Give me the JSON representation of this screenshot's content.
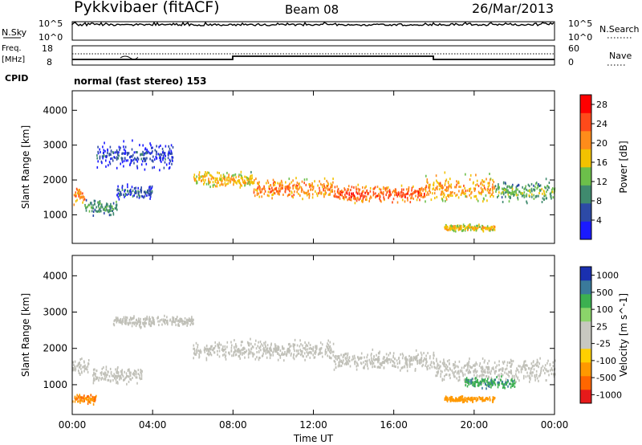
{
  "header": {
    "station": "Pykkvibaer (fitACF)",
    "beam": "Beam 08",
    "date": "26/Mar/2013"
  },
  "strips": {
    "nsky_label": "N.Sky",
    "nsearch_label": "N.Search",
    "nsky_ticks": [
      "10^5",
      "10^0"
    ],
    "nsearch_ticks": [
      "10^5",
      "10^0"
    ],
    "freq_label_top": "Freq.",
    "freq_label_unit": "[MHz]",
    "freq_ticks": [
      "18",
      "8"
    ],
    "nave_label": "Nave",
    "nave_ticks": [
      "60",
      "0"
    ],
    "cpid_label": "CPID",
    "cpid_text": "normal (fast stereo) 153"
  },
  "colors": {
    "power": [
      "#1a1aff",
      "#2d4aa6",
      "#3f8a6e",
      "#6cbf4a",
      "#f2c200",
      "#ff8c1a",
      "#ff4a1a",
      "#ff0000"
    ],
    "velocity": [
      "#e61a1a",
      "#ff6600",
      "#ff9900",
      "#ffd000",
      "#c8c8c0",
      "#c8c8c0",
      "#8bd46a",
      "#3cb050",
      "#3a7a9a",
      "#1a30b0"
    ],
    "ground_scatter": "#c0c0b8",
    "axis": "#000000",
    "background": "#ffffff"
  },
  "chart_data": [
    {
      "type": "heatmap",
      "title": "",
      "xlabel": "",
      "ylabel": "Slant Range [km]",
      "xlim": [
        0,
        24
      ],
      "ylim": [
        180,
        4560
      ],
      "x_ticks": [
        "00:00",
        "04:00",
        "08:00",
        "12:00",
        "16:00",
        "20:00",
        "00:00"
      ],
      "y_ticks": [
        "1000",
        "2000",
        "3000",
        "4000"
      ],
      "colorbar": {
        "label": "Power [dB]",
        "ticks": [
          "4",
          "8",
          "12",
          "16",
          "20",
          "24",
          "28"
        ],
        "range": [
          0,
          30
        ]
      },
      "bands": [
        {
          "x": [
            0.0,
            0.6
          ],
          "center_km": 1550,
          "width_km": 350,
          "value": 24
        },
        {
          "x": [
            0.6,
            2.2
          ],
          "center_km": 1200,
          "width_km": 300,
          "value": 12
        },
        {
          "x": [
            2.2,
            4.0
          ],
          "center_km": 1650,
          "width_km": 250,
          "value": 8
        },
        {
          "x": [
            1.2,
            5.0
          ],
          "center_km": 2700,
          "width_km": 500,
          "value": 6
        },
        {
          "x": [
            6.0,
            9.0
          ],
          "center_km": 2000,
          "width_km": 300,
          "value": 20
        },
        {
          "x": [
            9.0,
            13.0
          ],
          "center_km": 1750,
          "width_km": 350,
          "value": 24
        },
        {
          "x": [
            13.0,
            17.5
          ],
          "center_km": 1600,
          "width_km": 350,
          "value": 26
        },
        {
          "x": [
            17.5,
            21.0
          ],
          "center_km": 1750,
          "width_km": 500,
          "value": 22
        },
        {
          "x": [
            21.0,
            24.0
          ],
          "center_km": 1650,
          "width_km": 400,
          "value": 14
        },
        {
          "x": [
            18.5,
            21.0
          ],
          "center_km": 620,
          "width_km": 120,
          "value": 20
        }
      ]
    },
    {
      "type": "heatmap",
      "title": "",
      "xlabel": "Time UT",
      "ylabel": "Slant Range [km]",
      "xlim": [
        0,
        24
      ],
      "ylim": [
        180,
        4560
      ],
      "x_ticks": [
        "00:00",
        "04:00",
        "08:00",
        "12:00",
        "16:00",
        "20:00",
        "00:00"
      ],
      "y_ticks": [
        "1000",
        "2000",
        "3000",
        "4000"
      ],
      "colorbar": {
        "label": "Velocity [m s^-1]",
        "ticks": [
          "1000",
          "500",
          "100",
          "25",
          "-25",
          "-100",
          "-500",
          "-1000"
        ],
        "range": [
          -1250,
          1250
        ]
      },
      "bands": [
        {
          "x": [
            0.0,
            0.8
          ],
          "center_km": 1500,
          "width_km": 300,
          "value": 0
        },
        {
          "x": [
            1.0,
            3.5
          ],
          "center_km": 1250,
          "width_km": 300,
          "value": 0
        },
        {
          "x": [
            2.0,
            6.0
          ],
          "center_km": 2750,
          "width_km": 200,
          "value": 0
        },
        {
          "x": [
            6.0,
            13.0
          ],
          "center_km": 1950,
          "width_km": 350,
          "value": 0
        },
        {
          "x": [
            13.0,
            18.0
          ],
          "center_km": 1650,
          "width_km": 350,
          "value": 0
        },
        {
          "x": [
            18.0,
            24.0
          ],
          "center_km": 1400,
          "width_km": 450,
          "value": 0
        },
        {
          "x": [
            19.5,
            22.0
          ],
          "center_km": 1050,
          "width_km": 200,
          "value": 400
        },
        {
          "x": [
            18.5,
            21.0
          ],
          "center_km": 600,
          "width_km": 100,
          "value": -200
        },
        {
          "x": [
            0.0,
            1.2
          ],
          "center_km": 600,
          "width_km": 200,
          "value": -400
        }
      ]
    }
  ]
}
